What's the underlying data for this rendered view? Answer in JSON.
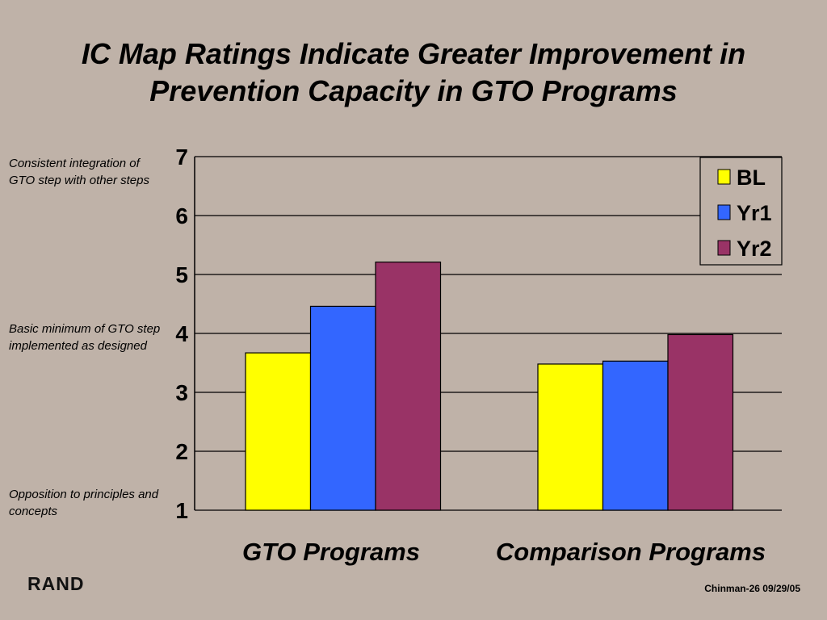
{
  "slide": {
    "title_line1": "IC Map Ratings Indicate Greater Improvement in",
    "title_line2": "Prevention Capacity in GTO Programs",
    "annotations": {
      "top": "Consistent  integration of GTO step with other steps",
      "middle": "Basic minimum of GTO step implemented as designed",
      "bottom": "Opposition to principles and concepts"
    },
    "logo_text": "RAND",
    "footer": "Chinman-26  09/29/05"
  },
  "chart_data": {
    "type": "bar",
    "title": "",
    "xlabel": "",
    "ylabel": "",
    "categories": [
      "GTO Programs",
      "Comparison Programs"
    ],
    "series": [
      {
        "name": "BL",
        "values": [
          3.67,
          3.48
        ],
        "color": "#ffff00"
      },
      {
        "name": "Yr1",
        "values": [
          4.46,
          3.53
        ],
        "color": "#3366ff"
      },
      {
        "name": "Yr2",
        "values": [
          5.21,
          3.98
        ],
        "color": "#993366"
      }
    ],
    "ylim": [
      1,
      7
    ],
    "yticks": [
      "1",
      "2",
      "3",
      "4",
      "5",
      "6",
      "7"
    ],
    "grid": true,
    "legend_position": "top-right"
  }
}
